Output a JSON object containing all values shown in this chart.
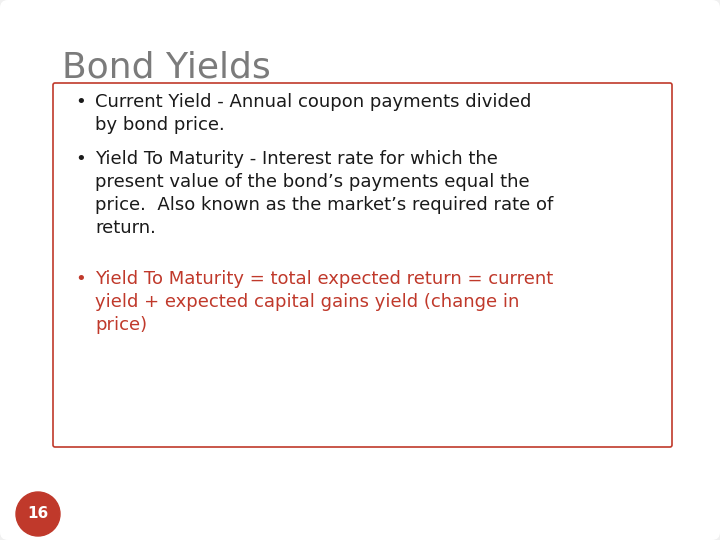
{
  "title": "Bond Yields",
  "title_color": "#7B7B7B",
  "title_fontsize": 26,
  "background_color": "#F0F0F0",
  "slide_bg": "#FFFFFF",
  "box_edge_color": "#C0392B",
  "box_face_color": "#FFFFFF",
  "bullet_color_black": "#1A1A1A",
  "bullet_color_red": "#C0392B",
  "bullet_char": "•",
  "page_number": "16",
  "page_num_bg": "#C0392B",
  "page_num_color": "#FFFFFF",
  "bullets_black": [
    "Current Yield - Annual coupon payments divided\nby bond price.",
    "Yield To Maturity - Interest rate for which the\npresent value of the bond’s payments equal the\nprice.  Also known as the market’s required rate of\nreturn."
  ],
  "bullet_red": "Yield To Maturity = total expected return = current\nyield + expected capital gains yield (change in\nprice)",
  "font_family": "DejaVu Sans",
  "body_fontsize": 13.0
}
